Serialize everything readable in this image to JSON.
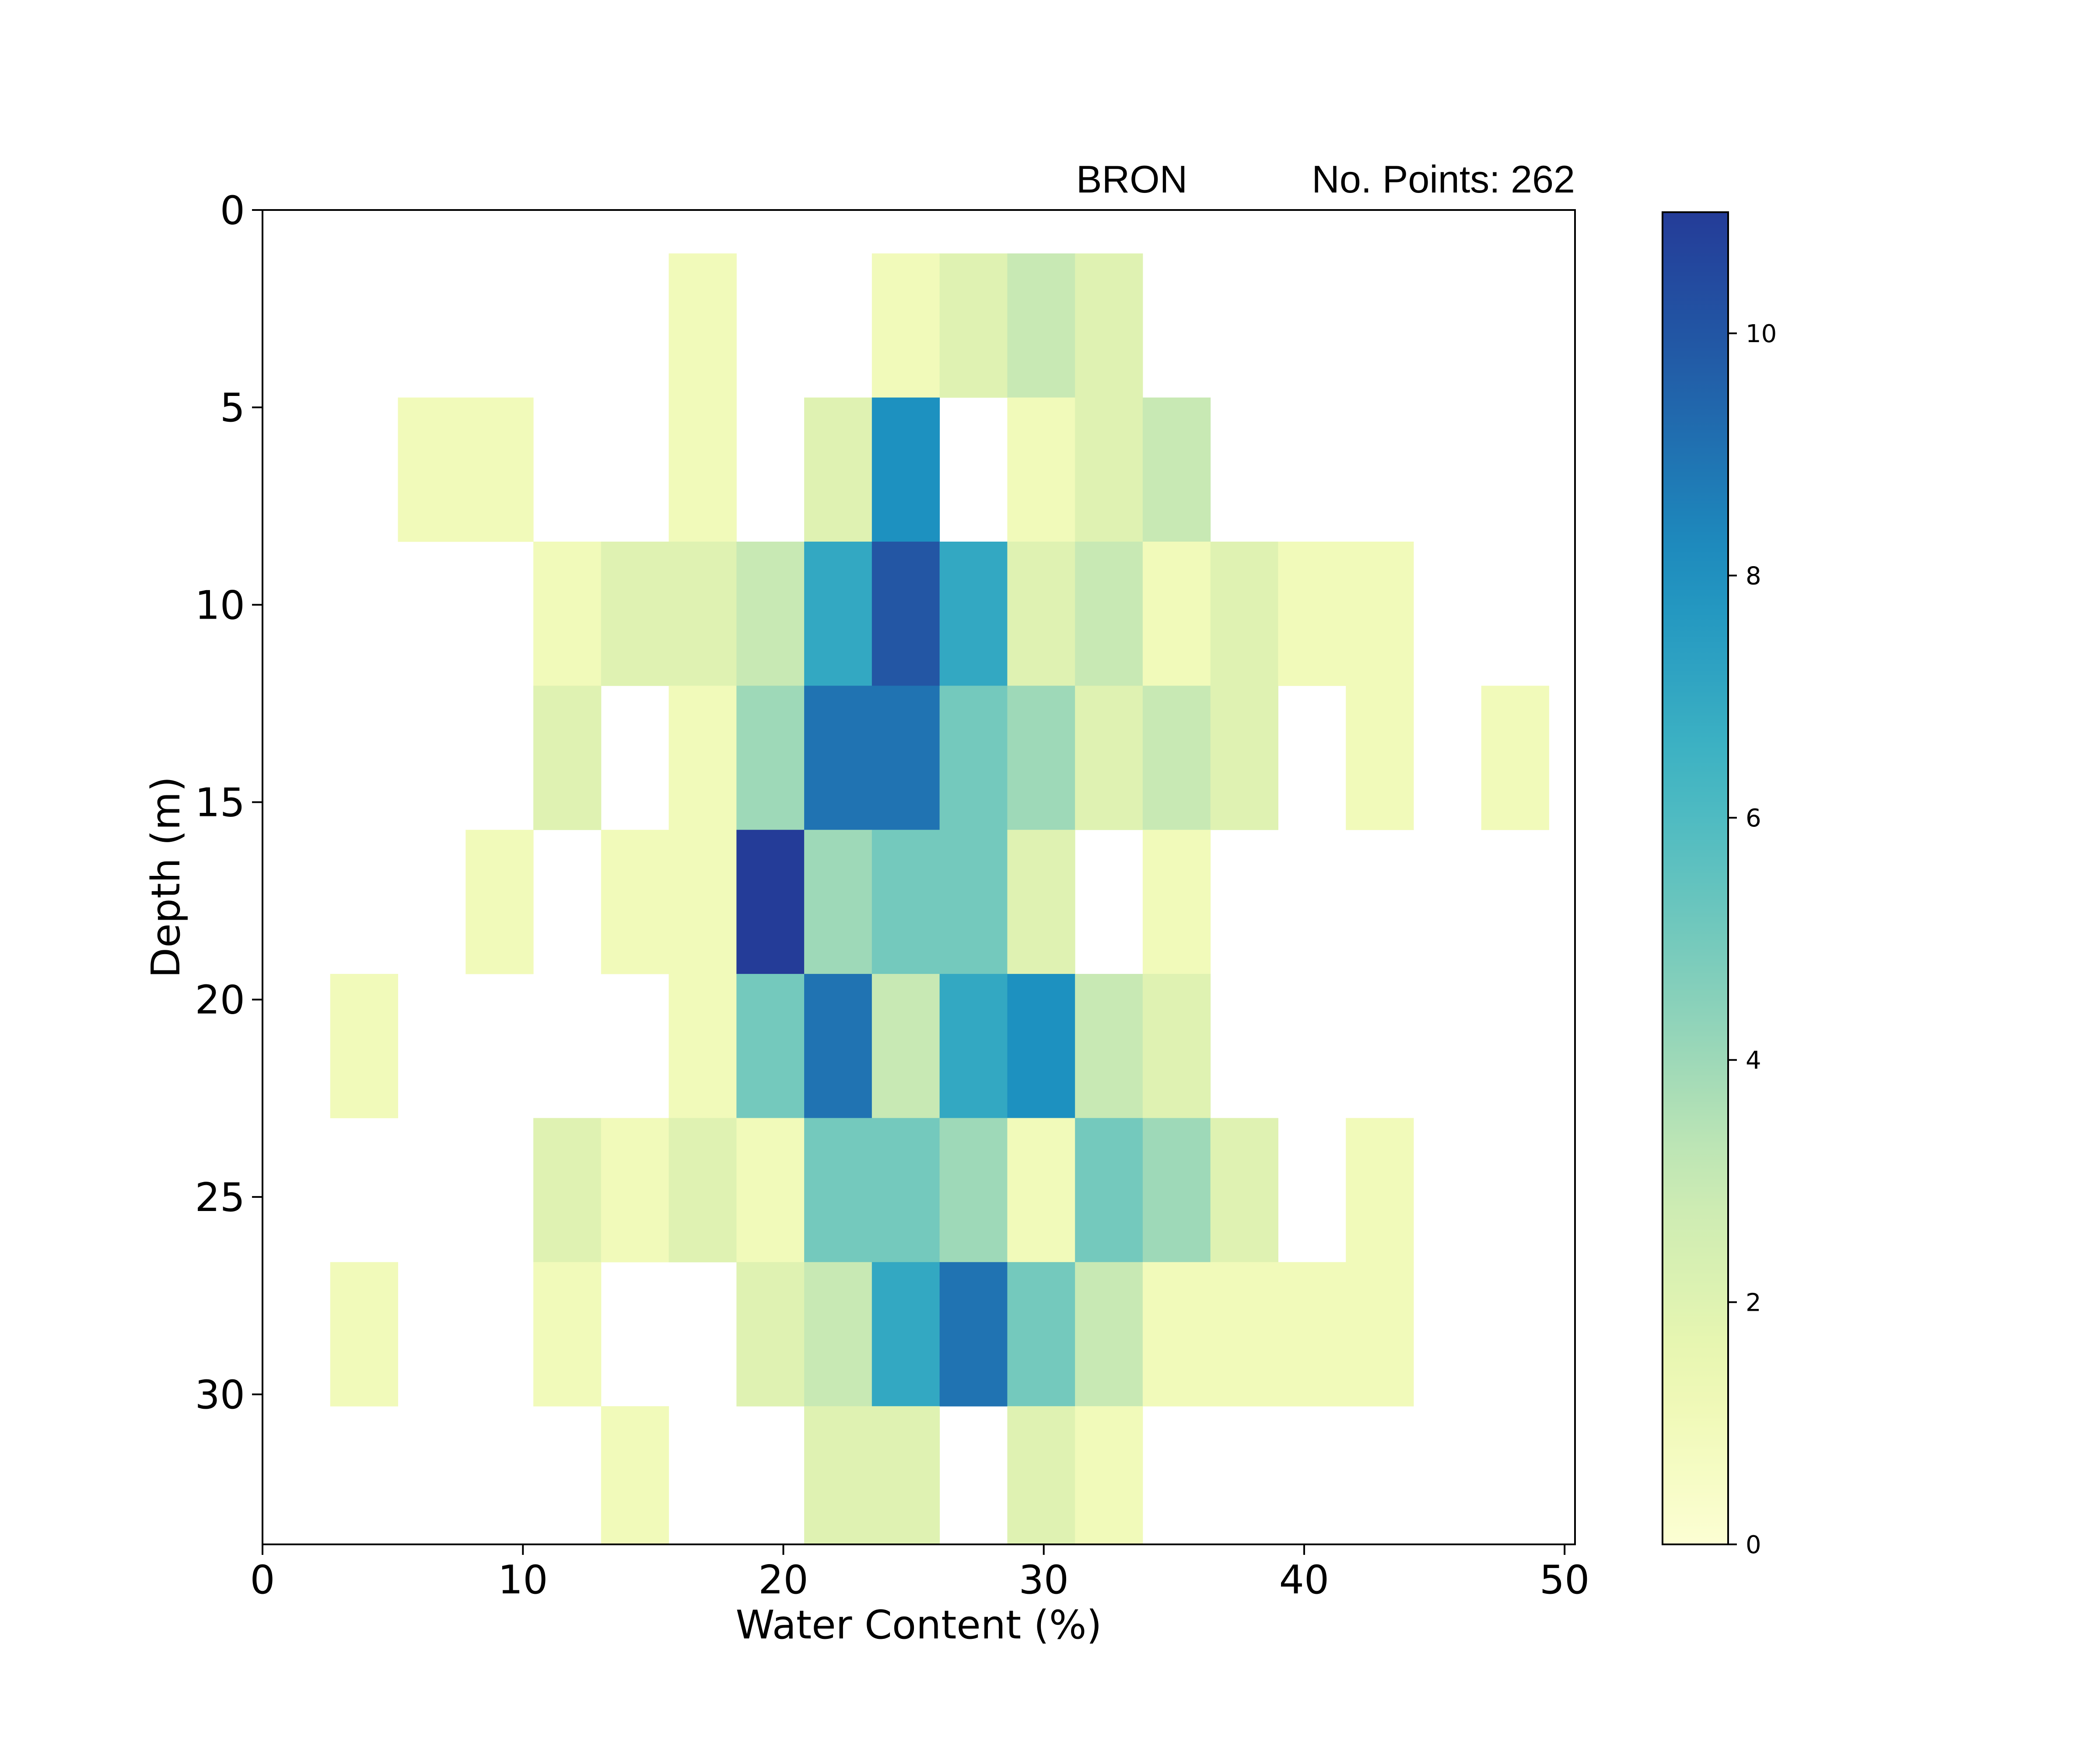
{
  "chart_data": {
    "type": "heatmap",
    "header": {
      "left": "BRON",
      "right": "No. Points: 262"
    },
    "xlabel": "Water Content (%)",
    "ylabel": "Depth (m)",
    "xlim": [
      0,
      50.4
    ],
    "ylim": [
      0,
      33.8
    ],
    "y_inverted": true,
    "x_ticks": [
      "0",
      "10",
      "20",
      "30",
      "40",
      "50"
    ],
    "y_ticks": [
      "0",
      "5",
      "10",
      "15",
      "20",
      "25",
      "30"
    ],
    "x_bin_edges": [
      0,
      2.6,
      5.2,
      7.8,
      10.4,
      13,
      15.6,
      18.2,
      20.8,
      23.4,
      26,
      28.6,
      31.2,
      33.8,
      36.4,
      39,
      41.6,
      44.2,
      46.8,
      49.4
    ],
    "y_bin_edges": [
      1.1,
      4.75,
      8.4,
      12.05,
      15.7,
      19.35,
      23,
      26.65,
      30.3,
      33.8
    ],
    "counts": [
      [
        0,
        0,
        0,
        0,
        0,
        0,
        1,
        0,
        0,
        1,
        2,
        3,
        2,
        0,
        0,
        0,
        0,
        0,
        0
      ],
      [
        0,
        0,
        1,
        1,
        0,
        0,
        1,
        0,
        2,
        8,
        0,
        1,
        2,
        3,
        0,
        0,
        0,
        0,
        0
      ],
      [
        0,
        0,
        0,
        0,
        1,
        2,
        2,
        3,
        7,
        10,
        7,
        2,
        3,
        1,
        2,
        1,
        1,
        0,
        0
      ],
      [
        0,
        0,
        0,
        0,
        2,
        0,
        1,
        4,
        9,
        9,
        5,
        4,
        2,
        3,
        2,
        0,
        1,
        0,
        1
      ],
      [
        0,
        0,
        0,
        1,
        0,
        1,
        1,
        11,
        4,
        5,
        5,
        2,
        0,
        1,
        0,
        0,
        0,
        0,
        0
      ],
      [
        0,
        1,
        0,
        0,
        0,
        0,
        1,
        5,
        9,
        3,
        7,
        8,
        3,
        2,
        0,
        0,
        0,
        0,
        0
      ],
      [
        0,
        0,
        0,
        0,
        2,
        1,
        2,
        1,
        5,
        5,
        4,
        1,
        5,
        4,
        2,
        0,
        1,
        0,
        0
      ],
      [
        0,
        1,
        0,
        0,
        1,
        0,
        0,
        2,
        3,
        7,
        9,
        5,
        3,
        1,
        1,
        1,
        1,
        0,
        0
      ],
      [
        0,
        0,
        0,
        0,
        0,
        1,
        0,
        0,
        2,
        2,
        0,
        2,
        1,
        0,
        0,
        0,
        0,
        0,
        0
      ]
    ],
    "colorbar": {
      "vmin": 0,
      "vmax": 11,
      "ticks": [
        "0",
        "2",
        "4",
        "6",
        "8",
        "10"
      ]
    },
    "colormap": "YlGnBu",
    "zero_color": "#ffffff"
  }
}
